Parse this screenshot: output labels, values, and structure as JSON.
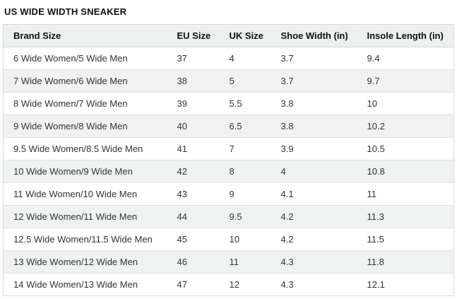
{
  "page": {
    "title": "US WIDE WIDTH SNEAKER"
  },
  "colors": {
    "header_bg": "#eef0f0",
    "stripe_bg": "#f0f2f2",
    "outer_border": "#d5d9d9",
    "row_border": "#dfe3e3",
    "header_text": "#0f1111",
    "cell_text": "#333333"
  },
  "table": {
    "columns": [
      "Brand Size",
      "EU Size",
      "UK Size",
      "Shoe Width (in)",
      "Insole Length (in)"
    ],
    "rows": [
      [
        "6 Wide Women/5 Wide Men",
        "37",
        "4",
        "3.7",
        "9.4"
      ],
      [
        "7 Wide Women/6 Wide Men",
        "38",
        "5",
        "3.7",
        "9.7"
      ],
      [
        "8 Wide Women/7 Wide Men",
        "39",
        "5.5",
        "3.8",
        "10"
      ],
      [
        "9 Wide Women/8 Wide Men",
        "40",
        "6.5",
        "3.8",
        "10.2"
      ],
      [
        "9.5 Wide Women/8.5 Wide Men",
        "41",
        "7",
        "3.9",
        "10.5"
      ],
      [
        "10 Wide Women/9 Wide Men",
        "42",
        "8",
        "4",
        "10.8"
      ],
      [
        "11 Wide Women/10 Wide Men",
        "43",
        "9",
        "4.1",
        "11"
      ],
      [
        "12 Wide Women/11 Wide Men",
        "44",
        "9.5",
        "4.2",
        "11.3"
      ],
      [
        "12.5 Wide Women/11.5 Wide Men",
        "45",
        "10",
        "4.2",
        "11.5"
      ],
      [
        "13 Wide Women/12 Wide Men",
        "46",
        "11",
        "4.3",
        "11.8"
      ],
      [
        "14 Wide Women/13 Wide Men",
        "47",
        "12",
        "4.3",
        "12.1"
      ]
    ]
  }
}
